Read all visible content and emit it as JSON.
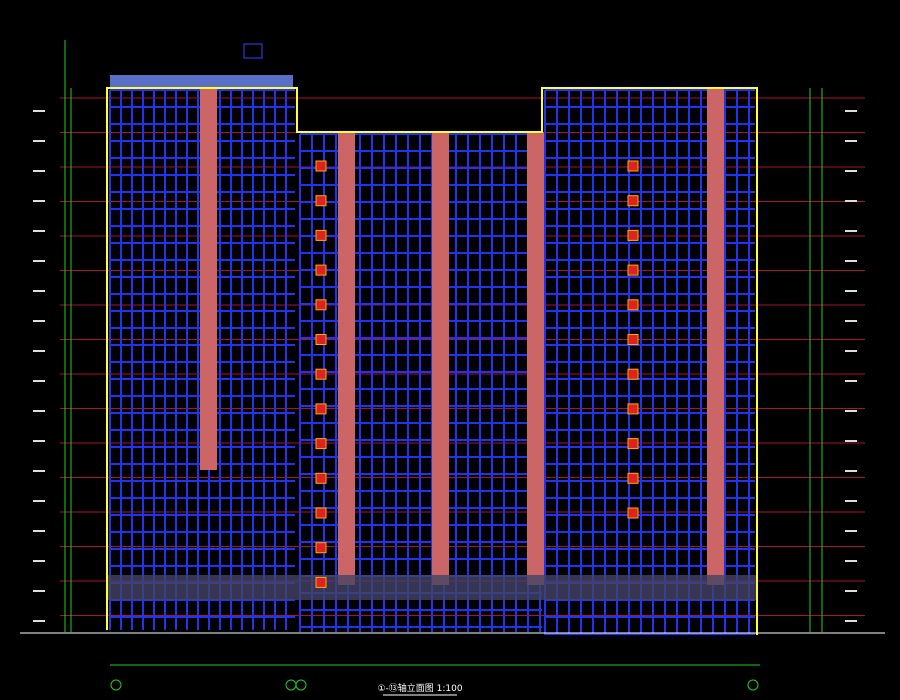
{
  "drawing": {
    "title": "①-⑬轴立面图 1:100"
  }
}
